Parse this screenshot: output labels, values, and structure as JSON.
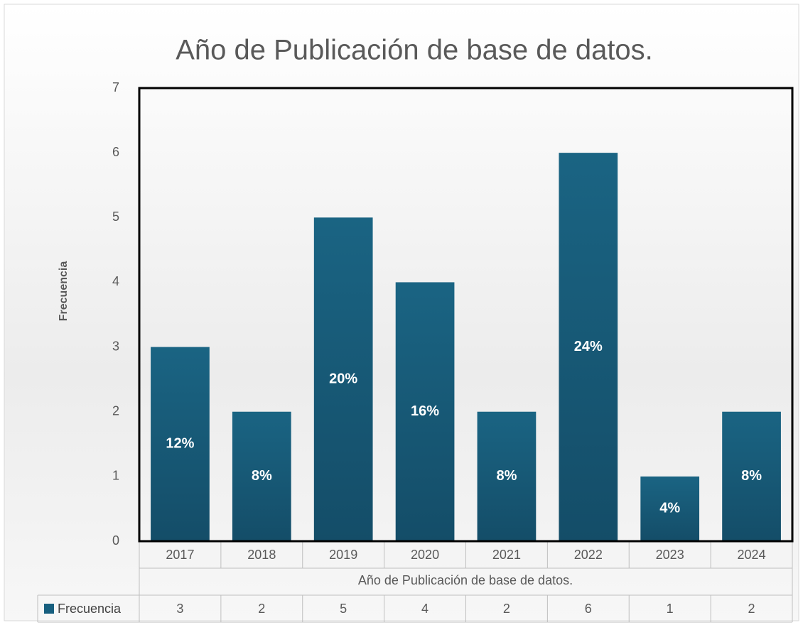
{
  "chart_data": {
    "type": "bar",
    "title": "Año de Publicación de base de datos.",
    "x_label": "Año de Publicación de base de datos.",
    "y_label": "Frecuencia",
    "categories": [
      "2017",
      "2018",
      "2019",
      "2020",
      "2021",
      "2022",
      "2023",
      "2024"
    ],
    "series": [
      {
        "name": "Frecuencia",
        "color": "#175f7f",
        "values": [
          3,
          2,
          5,
          4,
          2,
          6,
          1,
          2
        ]
      }
    ],
    "data_labels": [
      "12%",
      "8%",
      "20%",
      "16%",
      "8%",
      "24%",
      "4%",
      "8%"
    ],
    "ylim": [
      0,
      7
    ],
    "yticks": [
      0,
      1,
      2,
      3,
      4,
      5,
      6,
      7
    ],
    "grid": false,
    "data_table": true
  }
}
